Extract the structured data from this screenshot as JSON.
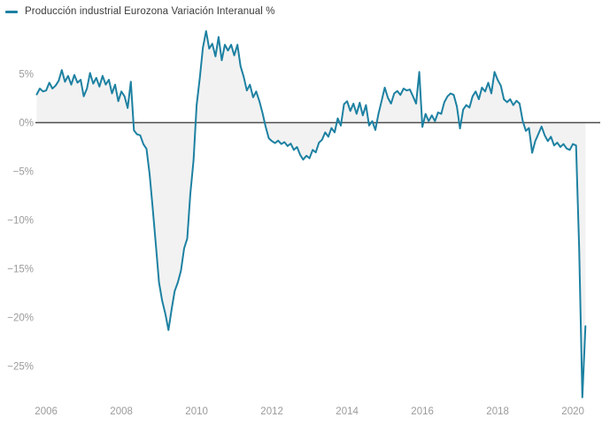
{
  "legend": {
    "label": "Producción industrial Eurozona Variación Interanual %"
  },
  "colors": {
    "line": "#1d81a2",
    "area_fill": "#f2f2f2",
    "zero_axis": "#4d4d4d",
    "tick_label": "#9b9b9b",
    "legend_text": "#3c3c3c",
    "background": "#ffffff"
  },
  "chart_data": {
    "type": "line",
    "title": "Producción industrial Eurozona Variación Interanual %",
    "unit": "%",
    "grid": "none (zero baseline only)",
    "legend_position": "top-left",
    "x_axis": {
      "tick_labels": [
        "2006",
        "2008",
        "2010",
        "2012",
        "2014",
        "2016",
        "2018",
        "2020"
      ],
      "tick_years": [
        2006,
        2008,
        2010,
        2012,
        2014,
        2016,
        2018,
        2020
      ]
    },
    "y_axis": {
      "tick_labels": [
        "5%",
        "0%",
        "−5%",
        "−10%",
        "−15%",
        "−20%",
        "−25%"
      ],
      "tick_values": [
        5,
        0,
        -5,
        -10,
        -15,
        -20,
        -25
      ],
      "ylim": [
        -28.5,
        10.1
      ]
    },
    "series": [
      {
        "name": "Producción industrial Eurozona Variación Interanual %",
        "start": "2005-10",
        "end": "2020-05",
        "frequency": "monthly",
        "values": [
          2.9,
          3.5,
          3.2,
          3.3,
          4.1,
          3.5,
          3.8,
          4.3,
          5.4,
          4.2,
          4.8,
          3.9,
          4.9,
          4.1,
          4.4,
          2.7,
          3.5,
          5.1,
          4.0,
          4.6,
          3.7,
          4.8,
          3.9,
          4.4,
          3.0,
          3.9,
          2.2,
          3.2,
          2.7,
          1.5,
          4.2,
          -0.8,
          -1.2,
          -1.3,
          -2.2,
          -2.7,
          -5.3,
          -8.8,
          -12.6,
          -16.4,
          -18.3,
          -19.6,
          -21.3,
          -19.2,
          -17.3,
          -16.4,
          -15.2,
          -12.9,
          -11.9,
          -7.3,
          -3.9,
          1.8,
          4.6,
          7.7,
          9.4,
          7.6,
          8.1,
          6.8,
          8.8,
          6.4,
          8.0,
          7.4,
          8.0,
          6.9,
          8.0,
          5.8,
          4.7,
          3.3,
          3.9,
          2.6,
          3.2,
          2.2,
          1.0,
          -0.4,
          -1.6,
          -1.9,
          -2.1,
          -1.85,
          -2.2,
          -2.0,
          -2.4,
          -2.15,
          -2.8,
          -2.5,
          -3.3,
          -3.8,
          -3.4,
          -3.65,
          -2.8,
          -3.05,
          -2.05,
          -1.75,
          -1.0,
          -1.45,
          -0.55,
          -1.0,
          0.45,
          -0.3,
          1.9,
          2.2,
          1.2,
          1.95,
          0.9,
          2.05,
          0.75,
          1.8,
          -0.3,
          0.15,
          -0.75,
          0.9,
          2.25,
          3.6,
          2.55,
          1.95,
          3.0,
          3.25,
          2.85,
          3.5,
          3.3,
          3.4,
          2.7,
          1.95,
          5.2,
          -0.45,
          0.9,
          0.15,
          0.75,
          0.15,
          1.05,
          0.9,
          2.1,
          2.7,
          3.0,
          2.85,
          1.65,
          -0.6,
          1.35,
          1.8,
          1.55,
          2.7,
          3.2,
          2.4,
          3.6,
          3.2,
          4.1,
          3.0,
          5.2,
          4.4,
          3.8,
          2.4,
          2.1,
          2.4,
          1.8,
          2.25,
          1.95,
          0.15,
          -0.85,
          -0.55,
          -3.1,
          -1.9,
          -1.15,
          -0.4,
          -1.3,
          -1.9,
          -1.45,
          -2.35,
          -2.05,
          -2.5,
          -2.2,
          -2.65,
          -2.8,
          -2.2,
          -2.35,
          -12.9,
          -28.2,
          -20.9
        ]
      }
    ]
  }
}
